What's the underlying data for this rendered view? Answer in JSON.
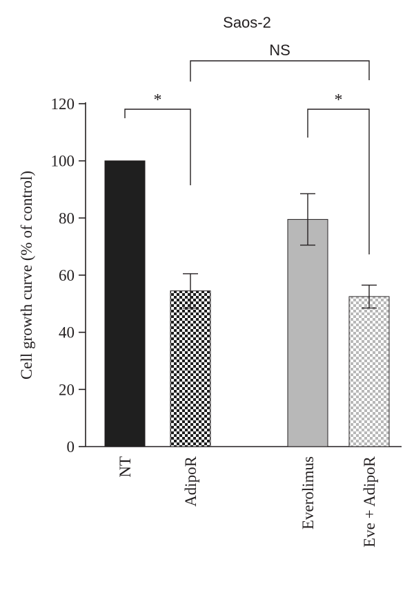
{
  "chart_data": {
    "type": "bar",
    "title": "Saos-2",
    "ylabel": "Cell growth curve (% of control)",
    "xlabel": "",
    "ylim": [
      0,
      120
    ],
    "yticks": [
      0,
      20,
      40,
      60,
      80,
      100,
      120
    ],
    "grid": false,
    "categories": [
      "NT",
      "AdipoR",
      "Everolimus",
      "Eve + AdipoR"
    ],
    "values": [
      100,
      54.5,
      79.5,
      52.5
    ],
    "errors": [
      null,
      6,
      9,
      4
    ],
    "bar_fills": [
      "solid-black",
      "checker-black",
      "solid-gray",
      "checker-gray"
    ],
    "colors": {
      "black": "#1f1f1f",
      "gray": "#b8b8b8",
      "axis": "#231f20"
    },
    "annotations": [
      {
        "label": "*",
        "from": "NT",
        "to": "AdipoR"
      },
      {
        "label": "*",
        "from": "Everolimus",
        "to": "Eve + AdipoR"
      },
      {
        "label": "NS",
        "from": "AdipoR",
        "to": "Eve + AdipoR"
      }
    ]
  }
}
